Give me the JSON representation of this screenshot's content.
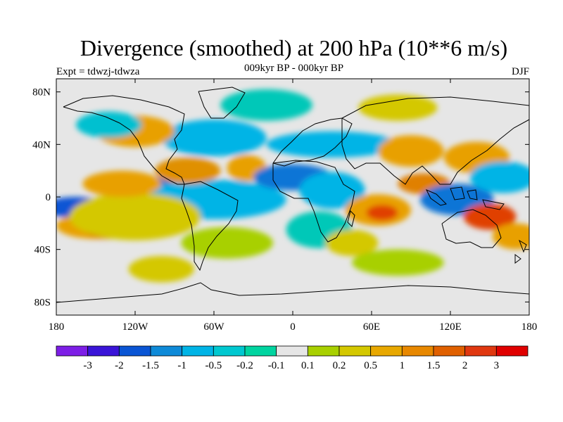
{
  "title": "Divergence (smoothed) at 200 hPa (10**6 m/s)",
  "subtitle": "009kyr BP - 000kyr BP",
  "left_label": "Expt = tdwzj-tdwza",
  "right_label": "DJF",
  "map": {
    "lon_range": [
      -180,
      180
    ],
    "lat_range": [
      -90,
      90
    ],
    "x_ticks": [
      {
        "value": -180,
        "label": "180"
      },
      {
        "value": -120,
        "label": "120W"
      },
      {
        "value": -60,
        "label": "60W"
      },
      {
        "value": 0,
        "label": "0"
      },
      {
        "value": 60,
        "label": "60E"
      },
      {
        "value": 120,
        "label": "120E"
      },
      {
        "value": 180,
        "label": "180"
      }
    ],
    "y_ticks": [
      {
        "value": 80,
        "label": "80N"
      },
      {
        "value": 40,
        "label": "40N"
      },
      {
        "value": 0,
        "label": "0"
      },
      {
        "value": -40,
        "label": "40S"
      },
      {
        "value": -80,
        "label": "80S"
      }
    ],
    "background_color": "#e6e6e6",
    "blobs": [
      {
        "lon": -90,
        "lat": -2,
        "rlon": 14,
        "rlat": 8,
        "color": "#3a14d8"
      },
      {
        "lon": -100,
        "lat": 3,
        "rlon": 35,
        "rlat": 12,
        "color": "#0e74d6"
      },
      {
        "lon": -60,
        "lat": -2,
        "rlon": 55,
        "rlat": 15,
        "color": "#00b4e6"
      },
      {
        "lon": -165,
        "lat": -8,
        "rlon": 25,
        "rlat": 8,
        "color": "#0a55d4"
      },
      {
        "lon": -150,
        "lat": -22,
        "rlon": 30,
        "rlat": 10,
        "color": "#e8a000"
      },
      {
        "lon": -140,
        "lat": -25,
        "rlon": 18,
        "rlat": 7,
        "color": "#e05800"
      },
      {
        "lon": -120,
        "lat": -15,
        "rlon": 50,
        "rlat": 18,
        "color": "#d4c800"
      },
      {
        "lon": -130,
        "lat": 10,
        "rlon": 30,
        "rlat": 10,
        "color": "#e8a000"
      },
      {
        "lon": -80,
        "lat": 20,
        "rlon": 25,
        "rlat": 10,
        "color": "#e09000"
      },
      {
        "lon": -35,
        "lat": 22,
        "rlon": 15,
        "rlat": 10,
        "color": "#e8a000"
      },
      {
        "lon": -50,
        "lat": -35,
        "rlon": 35,
        "rlat": 12,
        "color": "#a8d000"
      },
      {
        "lon": -60,
        "lat": 45,
        "rlon": 40,
        "rlat": 14,
        "color": "#00b4e6"
      },
      {
        "lon": -120,
        "lat": 50,
        "rlon": 30,
        "rlat": 12,
        "color": "#e8a000"
      },
      {
        "lon": -140,
        "lat": 55,
        "rlon": 25,
        "rlat": 10,
        "color": "#00c0d0"
      },
      {
        "lon": 0,
        "lat": 15,
        "rlon": 30,
        "rlat": 10,
        "color": "#0e74d6"
      },
      {
        "lon": 30,
        "lat": 5,
        "rlon": 25,
        "rlat": 14,
        "color": "#00b4e6"
      },
      {
        "lon": 20,
        "lat": -25,
        "rlon": 25,
        "rlat": 14,
        "color": "#00c8b8"
      },
      {
        "lon": 30,
        "lat": 40,
        "rlon": 50,
        "rlat": 10,
        "color": "#00b4e6"
      },
      {
        "lon": 65,
        "lat": -10,
        "rlon": 25,
        "rlat": 12,
        "color": "#e8a000"
      },
      {
        "lon": 68,
        "lat": -12,
        "rlon": 12,
        "rlat": 6,
        "color": "#e04000"
      },
      {
        "lon": 45,
        "lat": -35,
        "rlon": 20,
        "rlat": 10,
        "color": "#d4c800"
      },
      {
        "lon": 90,
        "lat": 35,
        "rlon": 25,
        "rlat": 12,
        "color": "#e8a000"
      },
      {
        "lon": 100,
        "lat": 10,
        "rlon": 20,
        "rlat": 8,
        "color": "#e08000"
      },
      {
        "lon": 128,
        "lat": 0,
        "rlon": 14,
        "rlat": 8,
        "color": "#3a14d8"
      },
      {
        "lon": 125,
        "lat": -2,
        "rlon": 28,
        "rlat": 12,
        "color": "#0e74d6"
      },
      {
        "lon": 140,
        "lat": 30,
        "rlon": 25,
        "rlat": 12,
        "color": "#e8a000"
      },
      {
        "lon": 160,
        "lat": 15,
        "rlon": 25,
        "rlat": 12,
        "color": "#00b4e6"
      },
      {
        "lon": 150,
        "lat": -15,
        "rlon": 20,
        "rlat": 10,
        "color": "#e04000"
      },
      {
        "lon": 170,
        "lat": -30,
        "rlon": 18,
        "rlat": 10,
        "color": "#e8a000"
      },
      {
        "lon": -100,
        "lat": -55,
        "rlon": 25,
        "rlat": 10,
        "color": "#d4c800"
      },
      {
        "lon": 80,
        "lat": -50,
        "rlon": 35,
        "rlat": 10,
        "color": "#a8d000"
      },
      {
        "lon": -20,
        "lat": 70,
        "rlon": 35,
        "rlat": 12,
        "color": "#00c8b8"
      },
      {
        "lon": 80,
        "lat": 68,
        "rlon": 30,
        "rlat": 10,
        "color": "#d4c800"
      }
    ]
  },
  "colorbar": {
    "colors": [
      "#7d1ee6",
      "#3a14d8",
      "#0a55d4",
      "#0e8ad8",
      "#00b4e6",
      "#00c8d0",
      "#00d4a0",
      "#e6e6e6",
      "#a8d000",
      "#d4c800",
      "#e8a800",
      "#e88800",
      "#e06000",
      "#e03810",
      "#e00000"
    ],
    "labels": [
      "-3",
      "-2",
      "-1.5",
      "-1",
      "-0.5",
      "-0.2",
      "-0.1",
      "0.1",
      "0.2",
      "0.5",
      "1",
      "1.5",
      "2",
      "3"
    ]
  }
}
